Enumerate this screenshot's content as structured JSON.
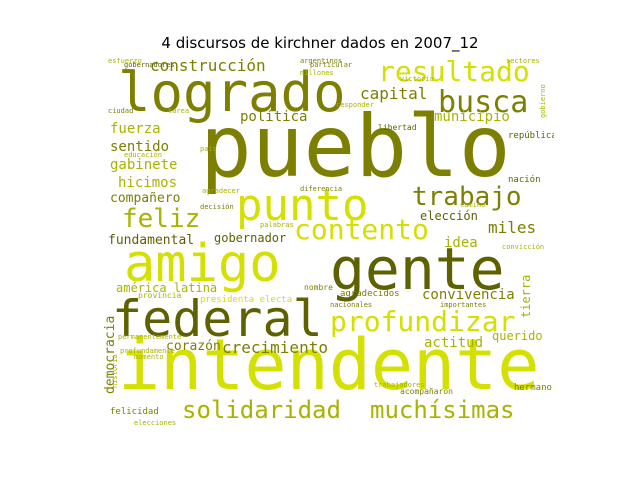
{
  "title": "4 discursos de kirchner dados en 2007_12",
  "palette": {
    "olive": "#7c7f00",
    "yellow": "#d4e000",
    "khaki": "#a8b300",
    "dark": "#5d6100"
  },
  "words": {
    "pueblo": "pueblo",
    "intendente": "intendente",
    "logrado": "logrado",
    "gente": "gente",
    "amigo": "amigo",
    "federal": "federal",
    "punto": "punto",
    "resultado": "resultado",
    "profundizar": "profundizar",
    "solidaridad": "solidaridad",
    "muchisimas": "muchísimas",
    "busca": "busca",
    "contento": "contento",
    "trabajo": "trabajo",
    "feliz": "feliz",
    "construccion": "construcción",
    "capital": "capital",
    "politica": "política",
    "municipio": "municipio",
    "fuerza": "fuerza",
    "sentido": "sentido",
    "gabinete": "gabinete",
    "hicimos": "hicimos",
    "companero": "compañero",
    "miles": "miles",
    "eleccion": "elección",
    "idea": "idea",
    "fundamental": "fundamental",
    "gobernador": "gobernador",
    "america_latina": "américa latina",
    "convivencia": "convivencia",
    "corazon": "corazón",
    "crecimiento": "crecimiento",
    "actitud": "actitud",
    "querido": "querido",
    "democracia": "democracia",
    "presidenta_electa": "presidenta electa",
    "nacion": "nación",
    "republica": "república",
    "libertad": "libertad",
    "agradecidos": "agradecidos",
    "felicidad": "felicidad",
    "tierra": "tierra",
    "hermano": "hermano",
    "provincia": "provincia",
    "acompanaron": "acompañaron",
    "nombre": "nombre",
    "esfuerzo": "esfuerzo",
    "argentinos": "argentinos",
    "millones": "millones",
    "ciudad": "ciudad",
    "gobierno": "gobierno",
    "pais": "país",
    "tarea": "tarea",
    "palabras": "palabras",
    "trabajadores": "trabajadores",
    "importantes": "importantes",
    "nacionales": "nacionales",
    "diferencia": "diferencia",
    "educacion": "educación",
    "gobernadores": "gobernadores",
    "sectores": "sectores",
    "responder": "responder",
    "particular": "particular",
    "camino": "camino",
    "victoria": "victoria",
    "decision": "decisión",
    "historia": "historia",
    "momento": "momento",
    "elecciones": "elecciones",
    "permanentemente": "permanentemente",
    "profundamente": "profundamente",
    "agradecer": "agradecer",
    "conviccion": "convicción"
  }
}
